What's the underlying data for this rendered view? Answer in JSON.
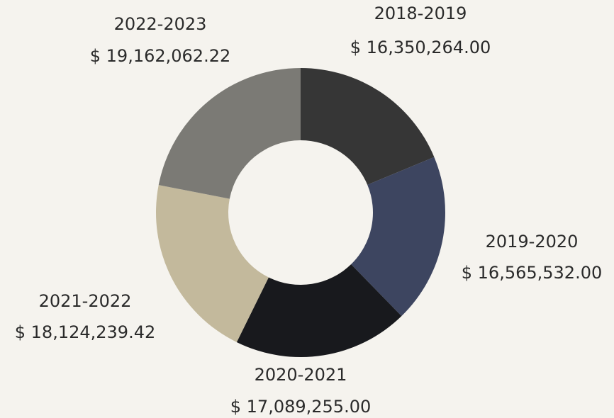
{
  "chart_data": {
    "type": "donut",
    "categories": [
      "2018-2019",
      "2019-2020",
      "2020-2021",
      "2021-2022",
      "2022-2023"
    ],
    "values": [
      16350264.0,
      16565532.0,
      17089255.0,
      18124239.42,
      19162062.22
    ],
    "value_labels": [
      "$ 16,350,264.00",
      "$ 16,565,532.00",
      "$ 17,089,255.00",
      "$ 18,124,239.42",
      "$ 19,162,062.22"
    ],
    "colors": [
      "#363636",
      "#3d4560",
      "#18191d",
      "#c3b99c",
      "#7b7a75"
    ]
  }
}
